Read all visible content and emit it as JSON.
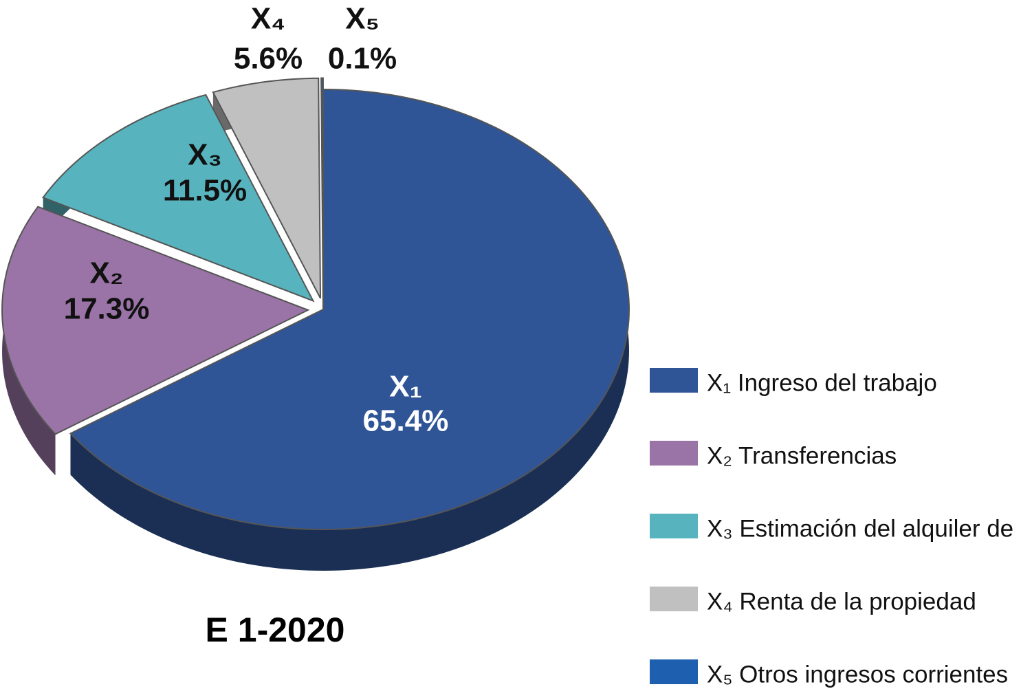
{
  "chart_data": {
    "type": "pie",
    "title": "E 1-2020",
    "categories": [
      "X₁ Ingreso del trabajo",
      "X₂ Transferencias",
      "X₃ Estimación del alquiler de",
      "X₄ Renta de la propiedad",
      "X₅ Otros ingresos corrientes"
    ],
    "short_labels": [
      "X₁",
      "X₂",
      "X₃",
      "X₄",
      "X₅"
    ],
    "values": [
      65.4,
      17.3,
      11.5,
      5.6,
      0.1
    ],
    "value_labels": [
      "65.4%",
      "17.3%",
      "11.5%",
      "5.6%",
      "0.1%"
    ],
    "colors": [
      "#2f5597",
      "#9a74a6",
      "#57b3bd",
      "#c0c0c0",
      "#1f5fb0"
    ],
    "legend": "right"
  }
}
